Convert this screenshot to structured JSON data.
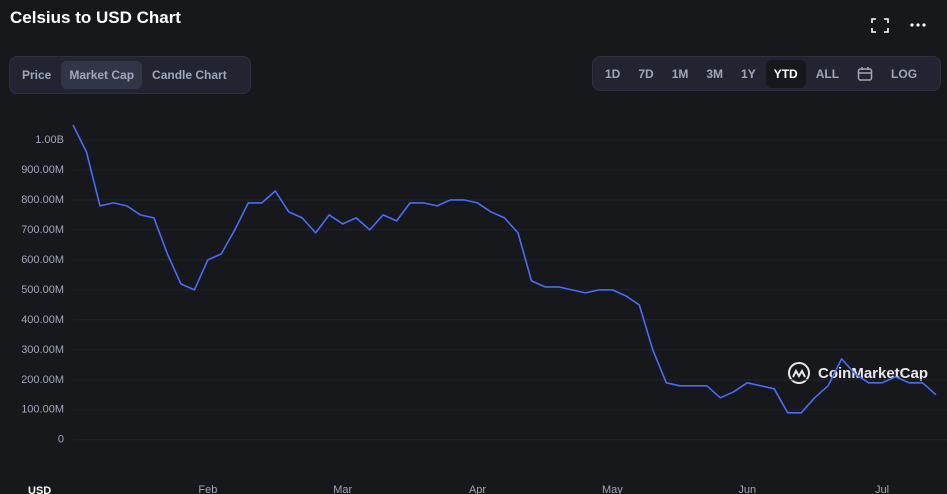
{
  "header": {
    "title": "Celsius to USD Chart"
  },
  "tabs": {
    "items": [
      "Price",
      "Market Cap",
      "Candle Chart"
    ],
    "selected": 1
  },
  "ranges": {
    "items": [
      "1D",
      "7D",
      "1M",
      "3M",
      "1Y",
      "YTD",
      "ALL"
    ],
    "selected": 5,
    "log_button": "LOG"
  },
  "watermark": "CoinMarketCap",
  "chart_data": {
    "type": "line",
    "currency": "USD",
    "color": "#4a6cf7",
    "grid": true,
    "categories": [
      null,
      null,
      null,
      null,
      null,
      null,
      null,
      null,
      null,
      null,
      "Feb",
      null,
      null,
      null,
      null,
      null,
      null,
      null,
      null,
      null,
      "Mar",
      null,
      null,
      null,
      null,
      null,
      null,
      null,
      null,
      null,
      "Apr",
      null,
      null,
      null,
      null,
      null,
      null,
      null,
      null,
      null,
      "May",
      null,
      null,
      null,
      null,
      null,
      null,
      null,
      null,
      null,
      "Jun",
      null,
      null,
      null,
      null,
      null,
      null,
      null,
      null,
      null,
      "Jul",
      null,
      null,
      null,
      null
    ],
    "values": [
      1050000000,
      960000000,
      780000000,
      790000000,
      780000000,
      750000000,
      740000000,
      620000000,
      520000000,
      500000000,
      600000000,
      620000000,
      700000000,
      790000000,
      790000000,
      830000000,
      760000000,
      740000000,
      690000000,
      750000000,
      720000000,
      740000000,
      700000000,
      750000000,
      730000000,
      790000000,
      790000000,
      780000000,
      800000000,
      800000000,
      790000000,
      760000000,
      740000000,
      690000000,
      530000000,
      510000000,
      510000000,
      500000000,
      490000000,
      500000000,
      500000000,
      480000000,
      450000000,
      300000000,
      190000000,
      180000000,
      180000000,
      180000000,
      140000000,
      160000000,
      190000000,
      180000000,
      170000000,
      90000000,
      90000000,
      140000000,
      180000000,
      270000000,
      220000000,
      190000000,
      190000000,
      210000000,
      190000000,
      190000000,
      150000000
    ],
    "ylim": [
      -84000000,
      1100000000
    ],
    "yticks": [
      0,
      {
        "value": 100000000,
        "label": "100.00M"
      },
      {
        "value": 200000000,
        "label": "200.00M"
      },
      {
        "value": 300000000,
        "label": "300.00M"
      },
      {
        "value": 400000000,
        "label": "400.00M"
      },
      {
        "value": 500000000,
        "label": "500.00M"
      },
      {
        "value": 600000000,
        "label": "600.00M"
      },
      {
        "value": 700000000,
        "label": "700.00M"
      },
      {
        "value": 800000000,
        "label": "800.00M"
      },
      {
        "value": 900000000,
        "label": "900.00M"
      },
      {
        "value": 1000000000,
        "label": "1.00B"
      }
    ]
  }
}
